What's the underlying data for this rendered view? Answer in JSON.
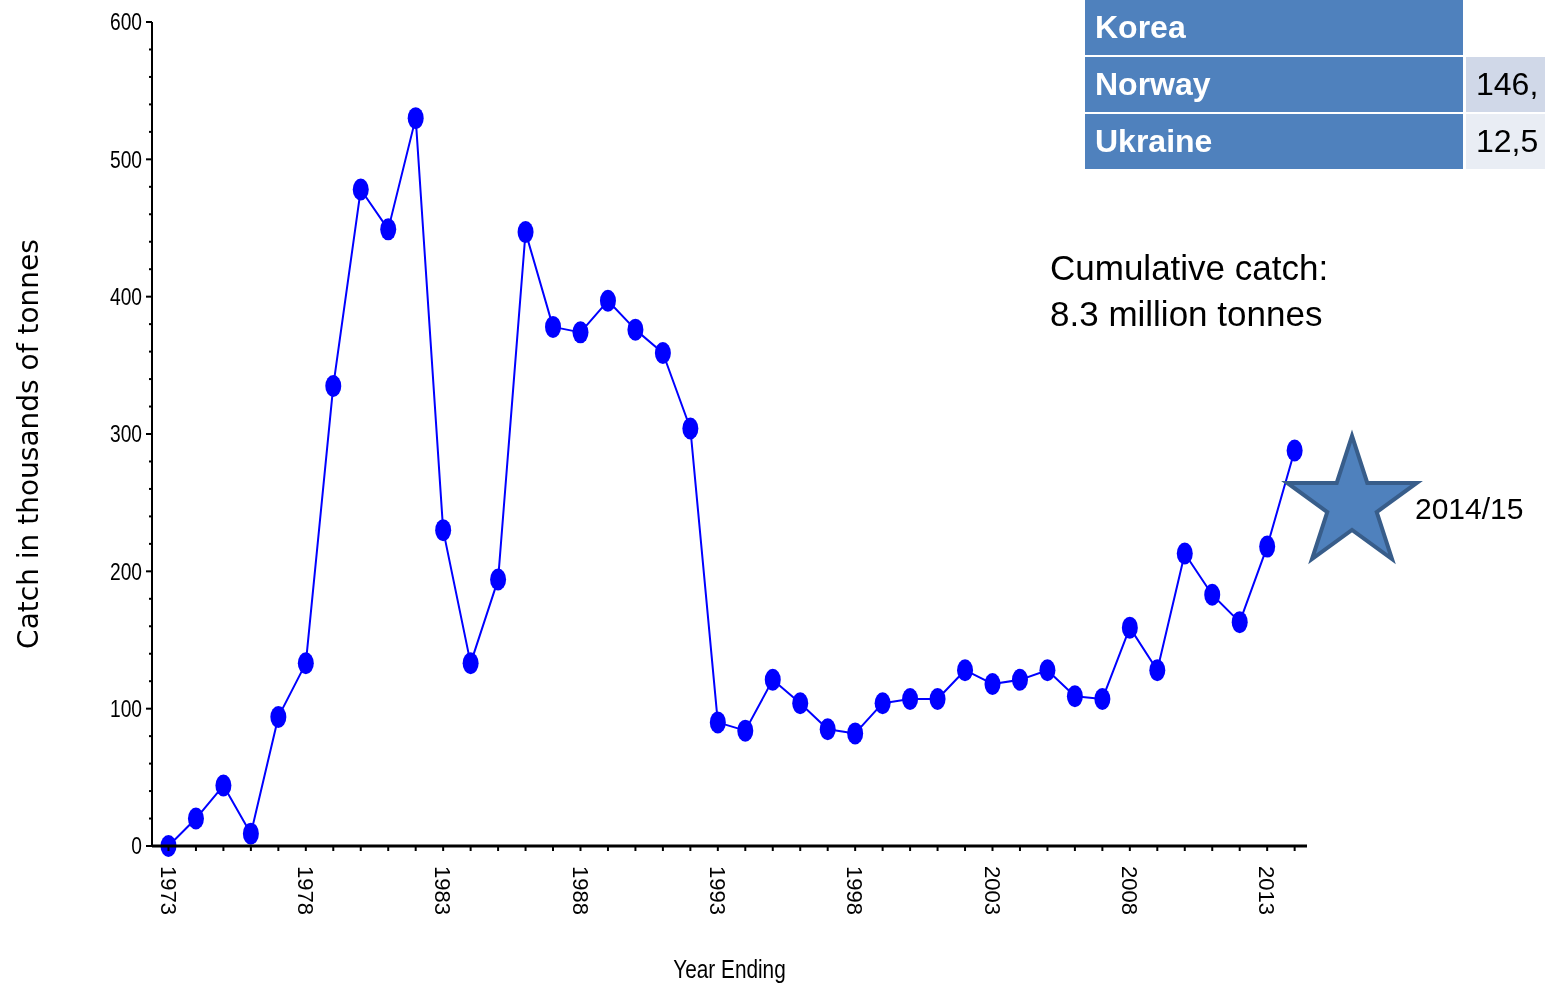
{
  "chart_data": {
    "type": "line",
    "xlabel": "Year Ending",
    "ylabel": "Catch in thousands of tonnes",
    "x": [
      1973,
      1974,
      1975,
      1976,
      1977,
      1978,
      1979,
      1980,
      1981,
      1982,
      1983,
      1984,
      1985,
      1986,
      1987,
      1988,
      1989,
      1990,
      1991,
      1992,
      1993,
      1994,
      1995,
      1996,
      1997,
      1998,
      1999,
      2000,
      2001,
      2002,
      2003,
      2004,
      2005,
      2006,
      2007,
      2008,
      2009,
      2010,
      2011,
      2012,
      2013,
      2014
    ],
    "series": [
      {
        "color": "#0000ff",
        "values": [
          0,
          20,
          44,
          9,
          94,
          133,
          335,
          478,
          449,
          530,
          230,
          133,
          194,
          447,
          378,
          374,
          397,
          376,
          359,
          304,
          90,
          84,
          121,
          104,
          85,
          82,
          104,
          107,
          107,
          128,
          118,
          121,
          128,
          109,
          107,
          159,
          128,
          213,
          183,
          163,
          218,
          288
        ]
      }
    ],
    "xlim": [
      1972.4,
      2014.45
    ],
    "ylim": [
      0,
      600
    ],
    "xticks": [
      1973,
      {
        "value": 1974,
        "label": null
      },
      {
        "value": 1975,
        "label": null
      },
      {
        "value": 1976,
        "label": null
      },
      {
        "value": 1977,
        "label": null
      },
      1978,
      {
        "value": 1979,
        "label": null
      },
      {
        "value": 1980,
        "label": null
      },
      {
        "value": 1981,
        "label": null
      },
      {
        "value": 1982,
        "label": null
      },
      1983,
      {
        "value": 1984,
        "label": null
      },
      {
        "value": 1985,
        "label": null
      },
      {
        "value": 1986,
        "label": null
      },
      {
        "value": 1987,
        "label": null
      },
      1988,
      {
        "value": 1989,
        "label": null
      },
      {
        "value": 1990,
        "label": null
      },
      {
        "value": 1991,
        "label": null
      },
      {
        "value": 1992,
        "label": null
      },
      1993,
      {
        "value": 1994,
        "label": null
      },
      {
        "value": 1995,
        "label": null
      },
      {
        "value": 1996,
        "label": null
      },
      {
        "value": 1997,
        "label": null
      },
      1998,
      {
        "value": 1999,
        "label": null
      },
      {
        "value": 2000,
        "label": null
      },
      {
        "value": 2001,
        "label": null
      },
      {
        "value": 2002,
        "label": null
      },
      2003,
      {
        "value": 2004,
        "label": null
      },
      {
        "value": 2005,
        "label": null
      },
      {
        "value": 2006,
        "label": null
      },
      {
        "value": 2007,
        "label": null
      },
      2008,
      {
        "value": 2009,
        "label": null
      },
      {
        "value": 2010,
        "label": null
      },
      {
        "value": 2011,
        "label": null
      },
      {
        "value": 2012,
        "label": null
      },
      2013,
      {
        "value": 2014,
        "label": null
      }
    ],
    "yticks": [
      0,
      {
        "value": 20,
        "label": null
      },
      {
        "value": 40,
        "label": null
      },
      {
        "value": 60,
        "label": null
      },
      {
        "value": 80,
        "label": null
      },
      100,
      {
        "value": 120,
        "label": null
      },
      {
        "value": 140,
        "label": null
      },
      {
        "value": 160,
        "label": null
      },
      {
        "value": 180,
        "label": null
      },
      200,
      {
        "value": 220,
        "label": null
      },
      {
        "value": 240,
        "label": null
      },
      {
        "value": 260,
        "label": null
      },
      {
        "value": 280,
        "label": null
      },
      300,
      {
        "value": 320,
        "label": null
      },
      {
        "value": 340,
        "label": null
      },
      {
        "value": 360,
        "label": null
      },
      {
        "value": 380,
        "label": null
      },
      400,
      {
        "value": 420,
        "label": null
      },
      {
        "value": 440,
        "label": null
      },
      {
        "value": 460,
        "label": null
      },
      {
        "value": 480,
        "label": null
      },
      500,
      {
        "value": 520,
        "label": null
      },
      {
        "value": 540,
        "label": null
      },
      {
        "value": 560,
        "label": null
      },
      {
        "value": 580,
        "label": null
      },
      600
    ],
    "grid": false,
    "marker": "circle",
    "line_style": "solid",
    "annotations": [
      "Cumulative catch:\n8.3 million tonnes",
      "2014/15",
      "Korea",
      "Norway",
      "146,",
      "Ukraine",
      "12,5"
    ]
  }
}
